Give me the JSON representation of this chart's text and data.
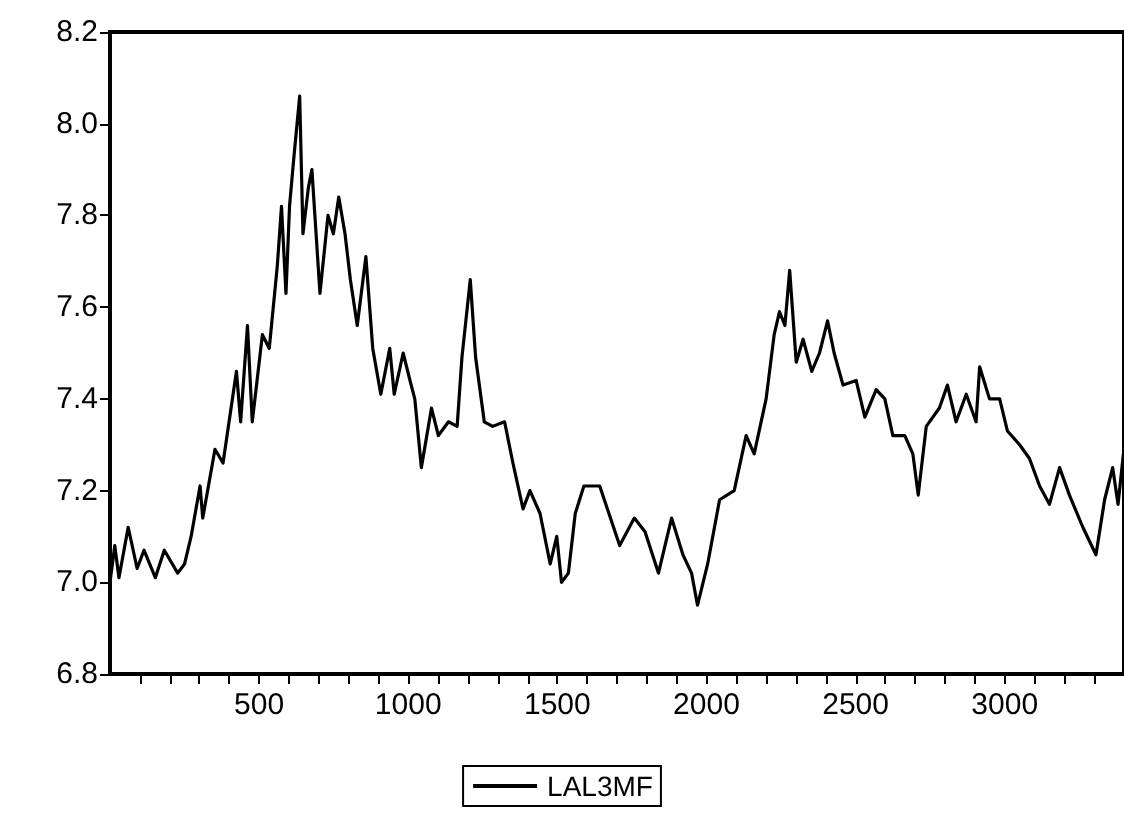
{
  "chart_data": {
    "type": "line",
    "x": [
      0,
      16,
      30,
      61,
      91,
      114,
      152,
      182,
      227,
      250,
      272,
      302,
      311,
      352,
      379,
      424,
      438,
      461,
      477,
      511,
      534,
      561,
      575,
      590,
      602,
      617,
      636,
      647,
      665,
      677,
      688,
      704,
      731,
      749,
      767,
      788,
      806,
      829,
      858,
      881,
      908,
      938,
      953,
      983,
      1006,
      1022,
      1044,
      1078,
      1101,
      1135,
      1164,
      1180,
      1208,
      1226,
      1255,
      1283,
      1323,
      1351,
      1385,
      1408,
      1442,
      1476,
      1498,
      1514,
      1537,
      1560,
      1589,
      1642,
      1709,
      1758,
      1794,
      1839,
      1883,
      1921,
      1950,
      1970,
      2004,
      2044,
      2093,
      2133,
      2160,
      2200,
      2227,
      2245,
      2263,
      2279,
      2301,
      2324,
      2353,
      2379,
      2406,
      2428,
      2458,
      2502,
      2531,
      2569,
      2598,
      2625,
      2665,
      2692,
      2710,
      2737,
      2781,
      2808,
      2837,
      2871,
      2904,
      2916,
      2949,
      2983,
      3009,
      3050,
      3083,
      3117,
      3150,
      3184,
      3217,
      3262,
      3306,
      3335,
      3362,
      3380,
      3398
    ],
    "series": [
      {
        "name": "LAL3MF",
        "color": "#000000",
        "values": [
          7.0,
          7.08,
          7.01,
          7.12,
          7.03,
          7.07,
          7.01,
          7.07,
          7.02,
          7.04,
          7.1,
          7.21,
          7.14,
          7.29,
          7.26,
          7.46,
          7.35,
          7.56,
          7.35,
          7.54,
          7.51,
          7.69,
          7.82,
          7.63,
          7.82,
          7.93,
          8.06,
          7.76,
          7.86,
          7.9,
          7.79,
          7.63,
          7.8,
          7.76,
          7.84,
          7.76,
          7.66,
          7.56,
          7.71,
          7.51,
          7.41,
          7.51,
          7.41,
          7.5,
          7.44,
          7.4,
          7.25,
          7.38,
          7.32,
          7.35,
          7.34,
          7.49,
          7.66,
          7.49,
          7.35,
          7.34,
          7.35,
          7.26,
          7.16,
          7.2,
          7.15,
          7.04,
          7.1,
          7.0,
          7.02,
          7.15,
          7.21,
          7.21,
          7.08,
          7.14,
          7.11,
          7.02,
          7.14,
          7.06,
          7.02,
          6.95,
          7.04,
          7.18,
          7.2,
          7.32,
          7.28,
          7.4,
          7.54,
          7.59,
          7.56,
          7.68,
          7.48,
          7.53,
          7.46,
          7.5,
          7.57,
          7.5,
          7.43,
          7.44,
          7.36,
          7.42,
          7.4,
          7.32,
          7.32,
          7.28,
          7.19,
          7.34,
          7.38,
          7.43,
          7.35,
          7.41,
          7.35,
          7.47,
          7.4,
          7.4,
          7.33,
          7.3,
          7.27,
          7.21,
          7.17,
          7.25,
          7.19,
          7.12,
          7.06,
          7.18,
          7.25,
          7.17,
          7.28
        ]
      }
    ],
    "xlim": [
      0,
      3400
    ],
    "xticks": [
      {
        "value": 100,
        "label": null
      },
      {
        "value": 200,
        "label": null
      },
      {
        "value": 300,
        "label": null
      },
      {
        "value": 400,
        "label": null
      },
      500,
      {
        "value": 600,
        "label": null
      },
      {
        "value": 700,
        "label": null
      },
      {
        "value": 800,
        "label": null
      },
      {
        "value": 900,
        "label": null
      },
      1000,
      {
        "value": 1100,
        "label": null
      },
      {
        "value": 1200,
        "label": null
      },
      {
        "value": 1300,
        "label": null
      },
      {
        "value": 1400,
        "label": null
      },
      1500,
      {
        "value": 1600,
        "label": null
      },
      {
        "value": 1700,
        "label": null
      },
      {
        "value": 1800,
        "label": null
      },
      {
        "value": 1900,
        "label": null
      },
      2000,
      {
        "value": 2100,
        "label": null
      },
      {
        "value": 2200,
        "label": null
      },
      {
        "value": 2300,
        "label": null
      },
      {
        "value": 2400,
        "label": null
      },
      2500,
      {
        "value": 2600,
        "label": null
      },
      {
        "value": 2700,
        "label": null
      },
      {
        "value": 2800,
        "label": null
      },
      {
        "value": 2900,
        "label": null
      },
      3000,
      {
        "value": 3100,
        "label": null
      },
      {
        "value": 3200,
        "label": null
      },
      {
        "value": 3300,
        "label": null
      }
    ],
    "ylim": [
      6.8,
      8.2
    ],
    "yticks": [
      {
        "value": 6.8,
        "label": "6.8"
      },
      {
        "value": 7,
        "label": "7.0"
      },
      {
        "value": 7.2,
        "label": "7.2"
      },
      {
        "value": 7.4,
        "label": "7.4"
      },
      {
        "value": 7.6,
        "label": "7.6"
      },
      {
        "value": 7.8,
        "label": "7.8"
      },
      {
        "value": 8,
        "label": "8.0"
      },
      {
        "value": 8.2,
        "label": "8.2"
      }
    ],
    "grid": false,
    "legend": "bottom",
    "marker": "none",
    "line_style": "solid"
  }
}
